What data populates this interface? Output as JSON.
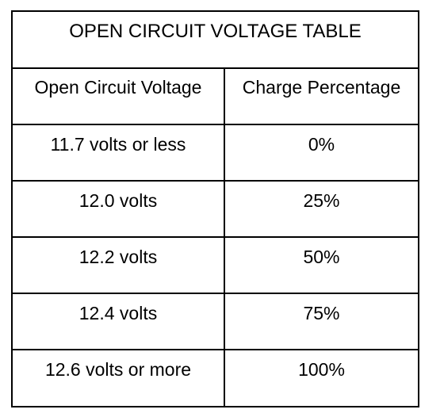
{
  "table": {
    "title": "OPEN CIRCUIT VOLTAGE TABLE",
    "headers": [
      "Open Circuit Voltage",
      "Charge Percentage"
    ],
    "rows": [
      [
        "11.7 volts or less",
        "0%"
      ],
      [
        "12.0 volts",
        "25%"
      ],
      [
        "12.2 volts",
        "50%"
      ],
      [
        "12.4 volts",
        "75%"
      ],
      [
        "12.6 volts or more",
        "100%"
      ]
    ]
  }
}
